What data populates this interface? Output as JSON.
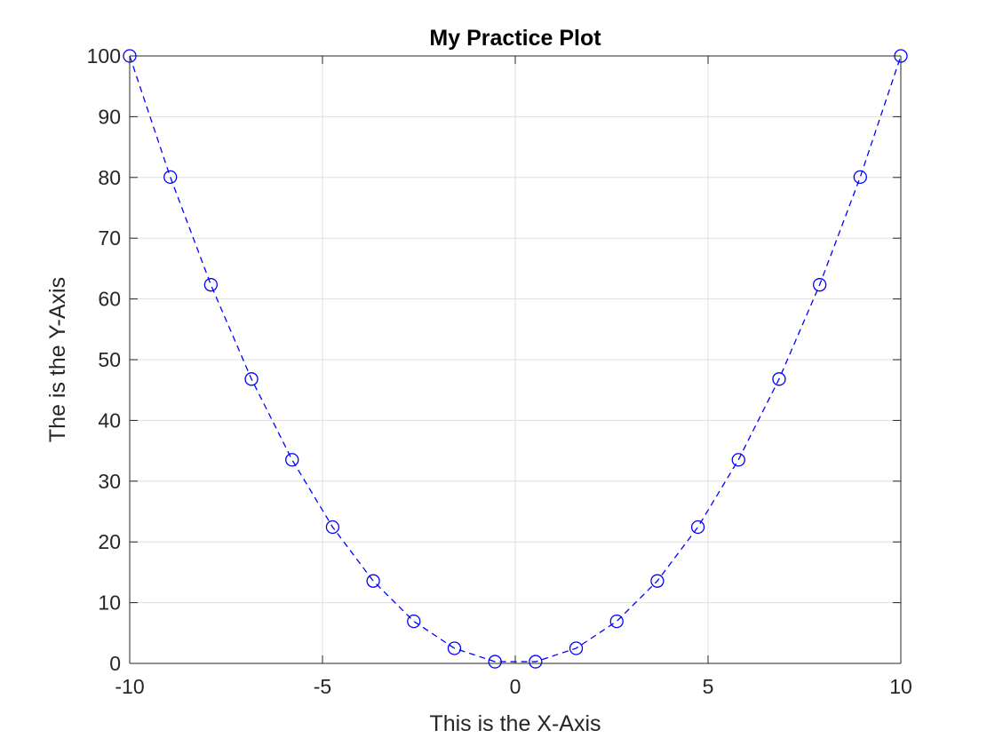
{
  "chart_data": {
    "type": "line",
    "title": "My Practice Plot",
    "xlabel": "This is the X-Axis",
    "ylabel": "The is the Y-Axis",
    "xlim": [
      -10,
      10
    ],
    "ylim": [
      0,
      100
    ],
    "xticks": [
      -10,
      -5,
      0,
      5,
      10
    ],
    "xtick_labels": [
      "-10",
      "-5",
      "0",
      "5",
      "10"
    ],
    "yticks": [
      0,
      10,
      20,
      30,
      40,
      50,
      60,
      70,
      80,
      90,
      100
    ],
    "ytick_labels": [
      "0",
      "10",
      "20",
      "30",
      "40",
      "50",
      "60",
      "70",
      "80",
      "90",
      "100"
    ],
    "grid": true,
    "box": true,
    "series": [
      {
        "line_style": "dashed",
        "marker": "circle",
        "color": "#0000ff",
        "x": [
          -10,
          -8.947,
          -7.895,
          -6.842,
          -5.789,
          -4.737,
          -3.684,
          -2.632,
          -1.579,
          -0.526,
          0.526,
          1.579,
          2.632,
          3.684,
          4.737,
          5.789,
          6.842,
          7.895,
          8.947,
          10
        ],
        "y": [
          100,
          80.06,
          62.33,
          46.81,
          33.52,
          22.44,
          13.57,
          6.93,
          2.49,
          0.28,
          0.28,
          2.49,
          6.93,
          13.57,
          22.44,
          33.52,
          46.81,
          62.33,
          80.06,
          100
        ]
      }
    ]
  },
  "colors": {
    "axis": "#262626",
    "grid": "#dfdfdf",
    "background": "#ffffff"
  }
}
